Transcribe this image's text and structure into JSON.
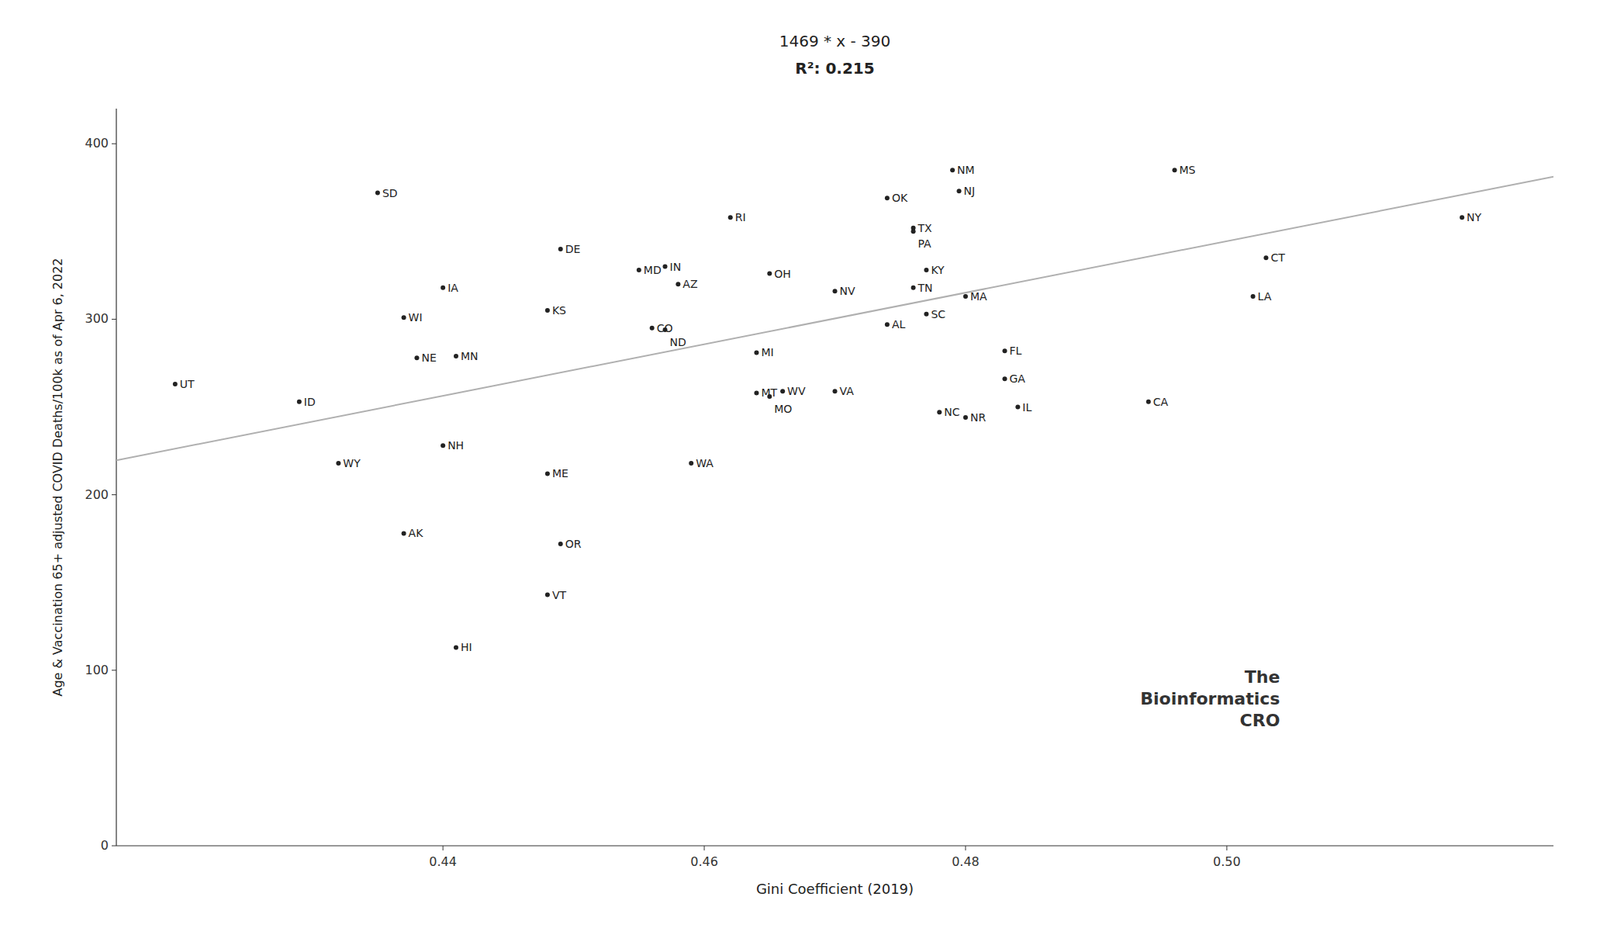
{
  "chart_data": {
    "type": "scatter",
    "title": "1469 * x - 390",
    "subtitle": "R²: 0.215",
    "x_label": "Gini Coefficient (2019)",
    "y_label": "Age & Vaccination 65+ adjusted COVID Deaths/100k as of Apr 6, 2022",
    "xlim": [
      0.415,
      0.525
    ],
    "ylim": [
      0,
      420
    ],
    "xticks": [
      0.44,
      0.46,
      0.48,
      {
        "value": 0.5,
        "label": "0.50"
      }
    ],
    "yticks": [
      0,
      100,
      200,
      300,
      400
    ],
    "grid": false,
    "series": [
      {
        "type": "scatter",
        "color": "#222222",
        "labels": [
          "UT",
          "SD",
          "ID",
          "WY",
          "WI",
          "IA",
          "NE",
          "MN",
          "NH",
          "AK",
          "HI",
          "KS",
          "ME",
          "VT",
          "DE",
          "OR",
          "MD",
          "IN",
          "CO",
          "ND",
          "AZ",
          "WA",
          "RI",
          "OH",
          "MI",
          "MT",
          "MO",
          "WV",
          "VA",
          "NV",
          "OK",
          "TX",
          "PA",
          "KY",
          "TN",
          "SC",
          "AL",
          "NC",
          "NR",
          "NM",
          "NJ",
          "MA",
          "FL",
          "GA",
          "IL",
          "MS",
          "CA",
          "LA",
          "CT",
          "NY"
        ],
        "x": [
          0.4195,
          0.435,
          0.429,
          0.432,
          0.437,
          0.44,
          0.438,
          0.441,
          0.44,
          0.437,
          0.441,
          0.448,
          0.448,
          0.448,
          0.449,
          0.449,
          0.455,
          0.457,
          0.456,
          0.457,
          0.458,
          0.459,
          0.462,
          0.465,
          0.464,
          0.464,
          0.465,
          0.466,
          0.47,
          0.47,
          0.474,
          0.476,
          0.476,
          0.477,
          0.476,
          0.477,
          0.474,
          0.478,
          0.48,
          0.479,
          0.4795,
          0.48,
          0.483,
          0.483,
          0.484,
          0.496,
          0.494,
          0.502,
          0.503,
          0.518
        ],
        "values": [
          263,
          372,
          253,
          218,
          301,
          318,
          278,
          279,
          228,
          178,
          113,
          305,
          212,
          143,
          340,
          172,
          328,
          330,
          295,
          294,
          320,
          218,
          358,
          326,
          281,
          258,
          256,
          259,
          259,
          316,
          369,
          352,
          350,
          328,
          318,
          303,
          297,
          247,
          244,
          385,
          373,
          313,
          282,
          266,
          250,
          385,
          253,
          313,
          335,
          358
        ]
      },
      {
        "type": "line",
        "color": "#b0b0b0",
        "x": [
          0.415,
          0.525
        ],
        "values": [
          219.635,
          381.225
        ]
      }
    ],
    "annotations": [
      "The",
      "Bioinformatics",
      "CRO"
    ]
  }
}
